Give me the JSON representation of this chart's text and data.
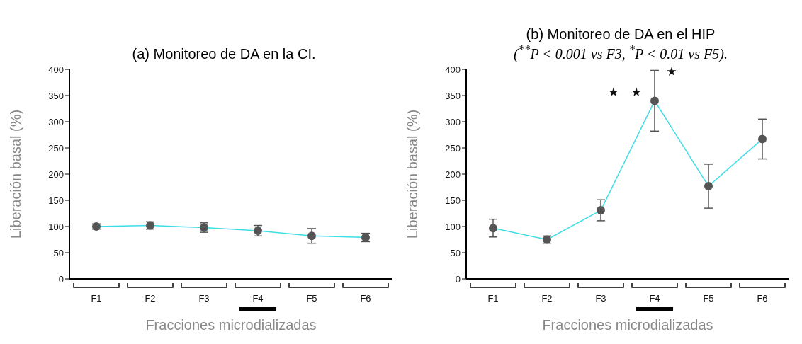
{
  "chart_data": [
    {
      "type": "line",
      "title": "(a) Monitoreo de DA en la CI.",
      "xlabel": "Fracciones microdializadas",
      "ylabel": "Liberación basal (%)",
      "categories": [
        "F1",
        "F2",
        "F3",
        "F4",
        "F5",
        "F6"
      ],
      "series": [
        {
          "color": "#3ddde6",
          "values": [
            100,
            102,
            98,
            92,
            82,
            79
          ],
          "errors": [
            5,
            7,
            9,
            10,
            14,
            8
          ]
        }
      ],
      "ylim": [
        0,
        400
      ],
      "yticks": [
        0,
        50,
        100,
        150,
        200,
        250,
        300,
        350,
        400
      ],
      "marker": "circle",
      "grid": false,
      "legend": false
    },
    {
      "type": "line",
      "title": "(b) Monitoreo de DA en el HIP",
      "subtitle": "($^{**}$P < 0.001 vs F3, $^{*}$P < 0.01 vs F5).",
      "xlabel": "Fracciones microdializadas",
      "ylabel": "Liberación basal (%)",
      "categories": [
        "F1",
        "F2",
        "F3",
        "F4",
        "F5",
        "F6"
      ],
      "series": [
        {
          "color": "#3ddde6",
          "values": [
            97,
            75,
            131,
            340,
            177,
            267
          ],
          "errors": [
            17,
            7,
            20,
            58,
            42,
            38
          ]
        }
      ],
      "ylim": [
        0,
        400
      ],
      "yticks": [
        0,
        50,
        100,
        150,
        200,
        250,
        300,
        350,
        400
      ],
      "marker": "circle",
      "grid": false,
      "legend": false,
      "annotations": [
        {
          "text": "⋆ ⋆",
          "x": "F4",
          "y": 355
        },
        {
          "text": "⋆",
          "x": "F4",
          "y": 395
        }
      ]
    }
  ]
}
